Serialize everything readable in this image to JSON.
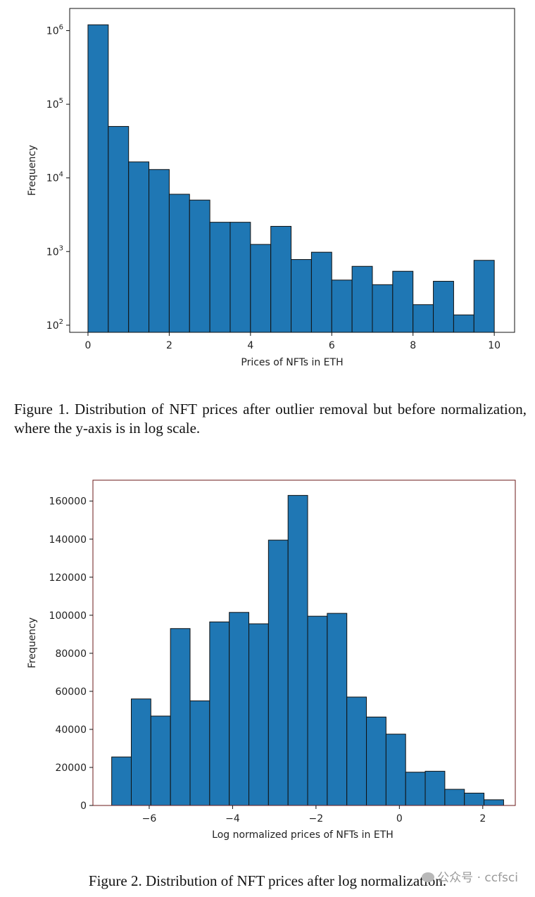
{
  "chart_data": [
    {
      "type": "bar",
      "title": "",
      "xlabel": "Prices of NFTs in ETH",
      "ylabel": "Frequency",
      "yscale": "log",
      "bin_edges": [
        0,
        0.5,
        1,
        1.5,
        2,
        2.5,
        3,
        3.5,
        4,
        4.5,
        5,
        5.5,
        6,
        6.5,
        7,
        7.5,
        8,
        8.5,
        9,
        9.5,
        10
      ],
      "values": [
        1200000,
        50000,
        16500,
        13000,
        6000,
        5000,
        2500,
        2500,
        1250,
        2200,
        780,
        980,
        410,
        630,
        355,
        540,
        190,
        395,
        138,
        760
      ],
      "xlim": [
        -0.45,
        10.5
      ],
      "ylim": [
        80,
        2000000
      ],
      "x_ticks": [
        0,
        2,
        4,
        6,
        8,
        10
      ],
      "x_tick_labels": [
        "0",
        "2",
        "4",
        "6",
        "8",
        "10"
      ],
      "y_ticks": [
        100,
        1000,
        10000,
        100000,
        1000000
      ],
      "y_tick_labels": [
        {
          "base": "10",
          "exp": "2"
        },
        {
          "base": "10",
          "exp": "3"
        },
        {
          "base": "10",
          "exp": "4"
        },
        {
          "base": "10",
          "exp": "5"
        },
        {
          "base": "10",
          "exp": "6"
        }
      ],
      "bar_color": "#1f77b4",
      "edge_color": "#111111"
    },
    {
      "type": "bar",
      "title": "",
      "xlabel": "Log normalized prices of NFTs in ETH",
      "ylabel": "Frequency",
      "yscale": "linear",
      "bin_edges": [
        -6.9,
        -6.43,
        -5.96,
        -5.49,
        -5.02,
        -4.55,
        -4.08,
        -3.61,
        -3.14,
        -2.67,
        -2.2,
        -1.73,
        -1.26,
        -0.79,
        -0.32,
        0.15,
        0.62,
        1.09,
        1.56,
        2.03,
        2.5
      ],
      "values": [
        25500,
        56000,
        47000,
        93000,
        55000,
        96500,
        101500,
        95500,
        139500,
        163000,
        99500,
        101000,
        57000,
        46500,
        37500,
        17500,
        18000,
        8500,
        6500,
        3000
      ],
      "xlim": [
        -7.35,
        2.78
      ],
      "ylim": [
        0,
        171000
      ],
      "x_ticks": [
        -6,
        -4,
        -2,
        0,
        2
      ],
      "x_tick_labels": [
        "−6",
        "−4",
        "−2",
        "0",
        "2"
      ],
      "y_ticks": [
        0,
        20000,
        40000,
        60000,
        80000,
        100000,
        120000,
        140000,
        160000
      ],
      "y_tick_labels": [
        "0",
        "20000",
        "40000",
        "60000",
        "80000",
        "100000",
        "120000",
        "140000",
        "160000"
      ],
      "bar_color": "#1f77b4",
      "edge_color": "#111111"
    }
  ],
  "captions": {
    "fig1": "Figure 1. Distribution of NFT prices after outlier removal but before normalization, where the y-axis is in log scale.",
    "fig2": "Figure 2. Distribution of NFT prices after log normalization."
  },
  "watermark": {
    "text": "公众号 · ccfsci"
  }
}
